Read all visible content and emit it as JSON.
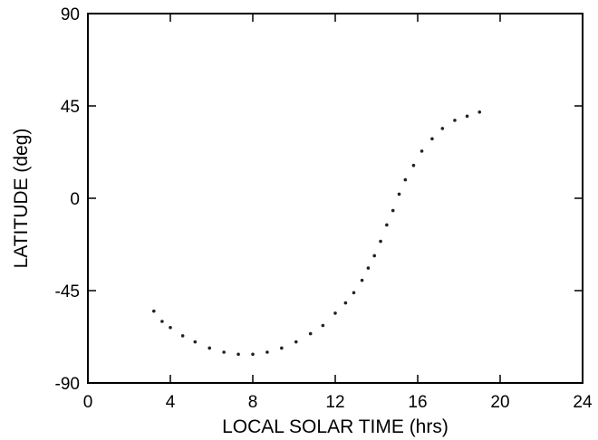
{
  "chart_data": {
    "type": "scatter",
    "title": "",
    "xlabel": "LOCAL SOLAR TIME (hrs)",
    "ylabel": "LATITUDE (deg)",
    "xlim": [
      0,
      24
    ],
    "ylim": [
      -90,
      90
    ],
    "xticks": [
      0,
      4,
      8,
      12,
      16,
      20,
      24
    ],
    "yticks": [
      -90,
      -45,
      0,
      45,
      90
    ],
    "xtick_labels": [
      "0",
      "4",
      "8",
      "12",
      "16",
      "20",
      "24"
    ],
    "ytick_labels": [
      "-90",
      "-45",
      "0",
      "45",
      "90"
    ],
    "grid": false,
    "legend": "none",
    "marker_color": "#222222",
    "series": [
      {
        "x": [
          3.2,
          3.6,
          4.0,
          4.6,
          5.2,
          5.9,
          6.6,
          7.3,
          8.0,
          8.7,
          9.4,
          10.1,
          10.8,
          11.4,
          12.0,
          12.5,
          12.9,
          13.3,
          13.6,
          13.9,
          14.2,
          14.5,
          14.8,
          15.1,
          15.4,
          15.8,
          16.2,
          16.7,
          17.2,
          17.8,
          18.4,
          19.0
        ],
        "y": [
          -55,
          -60,
          -63,
          -67,
          -70,
          -73,
          -75,
          -76,
          -76,
          -75,
          -73,
          -70,
          -66,
          -62,
          -56,
          -51,
          -46,
          -40,
          -34,
          -28,
          -21,
          -13,
          -6,
          2,
          9,
          16,
          23,
          29,
          34,
          38,
          40,
          42
        ]
      }
    ]
  }
}
